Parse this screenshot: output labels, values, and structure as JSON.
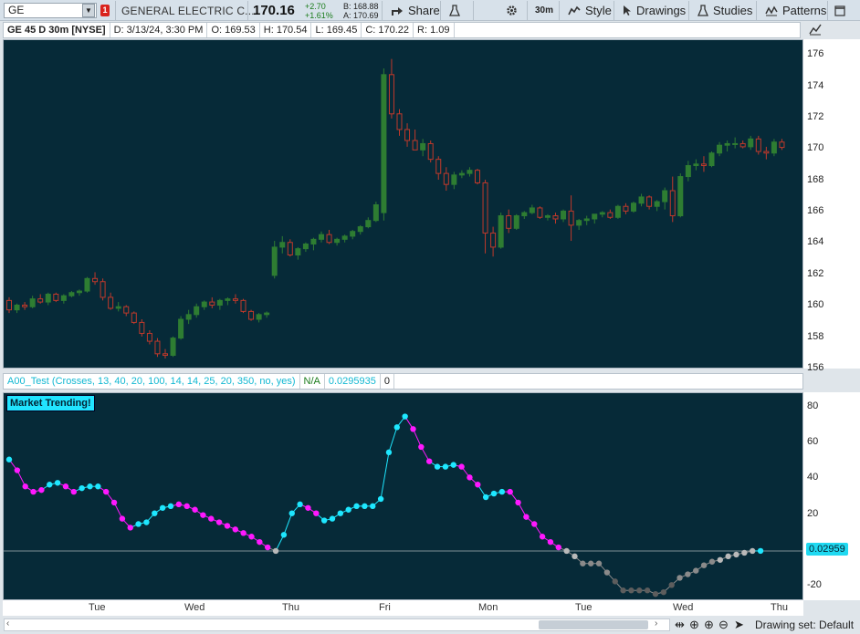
{
  "toolbar": {
    "symbol": "GE",
    "alert_count": "1",
    "company": "GENERAL ELECTRIC C...",
    "last": "170.16",
    "change_abs": "+2.70",
    "change_pct": "+1.61%",
    "bid": "B: 168.88",
    "ask": "A: 170.69",
    "share_label": "Share",
    "timeframe_label": "30m",
    "style_label": "Style",
    "drawings_label": "Drawings",
    "studies_label": "Studies",
    "patterns_label": "Patterns"
  },
  "infobar": {
    "title": "GE 45 D 30m [NYSE]",
    "date": "D: 3/13/24, 3:30 PM",
    "open": "O: 169.53",
    "high": "H: 170.54",
    "low": "L: 169.45",
    "close": "C: 170.22",
    "range": "R: 1.09"
  },
  "price_axis": [
    "176",
    "174",
    "172",
    "170",
    "168",
    "166",
    "164",
    "162",
    "160",
    "158",
    "156"
  ],
  "study_bar": {
    "name": "A00_Test (Crosses, 13, 40, 20, 100, 14, 14, 25, 20, 350, no, yes)",
    "na": "N/A",
    "value": "0.0295935",
    "zero": "0"
  },
  "study": {
    "banner": "Market Trending!",
    "value_tag": "0.02959",
    "axis": [
      "80",
      "60",
      "40",
      "20",
      "-20"
    ]
  },
  "x_axis": [
    "Tue",
    "Wed",
    "Thu",
    "Fri",
    "Mon",
    "Tue",
    "Wed",
    "Thu"
  ],
  "bottom": {
    "drawing_set": "Drawing set: Default"
  },
  "colors": {
    "background": "#062a38",
    "up_candle": "#2e7d32",
    "down_candle": "#c0392b",
    "cyan": "#1ee7ff",
    "magenta": "#ff18ff",
    "gray": "#8a8a8a"
  },
  "chart_data": [
    {
      "type": "candlestick",
      "title": "GE 45 D 30m [NYSE]",
      "ylim": [
        156,
        177
      ],
      "series": [
        {
          "name": "price",
          "ohlc": [
            [
              160.4,
              160.6,
              159.6,
              159.8
            ],
            [
              159.8,
              160.2,
              159.6,
              160.1
            ],
            [
              160.1,
              160.3,
              159.8,
              160.0
            ],
            [
              160.0,
              160.7,
              159.9,
              160.5
            ],
            [
              160.5,
              160.8,
              160.2,
              160.3
            ],
            [
              160.3,
              160.9,
              160.1,
              160.8
            ],
            [
              160.8,
              160.9,
              160.3,
              160.4
            ],
            [
              160.4,
              160.8,
              160.2,
              160.7
            ],
            [
              160.7,
              161.0,
              160.6,
              160.9
            ],
            [
              160.9,
              161.1,
              160.7,
              161.0
            ],
            [
              161.0,
              161.9,
              160.9,
              161.8
            ],
            [
              161.8,
              162.2,
              161.4,
              161.6
            ],
            [
              161.6,
              161.8,
              160.4,
              160.6
            ],
            [
              160.6,
              160.9,
              159.8,
              159.9
            ],
            [
              159.9,
              160.3,
              159.7,
              160.0
            ],
            [
              160.0,
              160.1,
              159.4,
              159.6
            ],
            [
              159.6,
              159.7,
              158.9,
              159.0
            ],
            [
              159.0,
              159.2,
              158.1,
              158.3
            ],
            [
              158.3,
              158.5,
              157.6,
              157.8
            ],
            [
              157.8,
              158.0,
              156.8,
              157.0
            ],
            [
              157.0,
              157.3,
              156.7,
              156.9
            ],
            [
              156.9,
              158.1,
              156.8,
              158.0
            ],
            [
              158.0,
              159.4,
              157.9,
              159.2
            ],
            [
              159.2,
              159.8,
              158.9,
              159.5
            ],
            [
              159.5,
              160.2,
              159.3,
              160.0
            ],
            [
              160.0,
              160.4,
              159.8,
              160.3
            ],
            [
              160.3,
              160.6,
              159.9,
              160.1
            ],
            [
              160.1,
              160.5,
              159.8,
              160.4
            ],
            [
              160.4,
              160.6,
              160.1,
              160.5
            ],
            [
              160.5,
              160.8,
              160.2,
              160.4
            ],
            [
              160.4,
              160.5,
              159.6,
              159.7
            ],
            [
              159.7,
              159.8,
              159.1,
              159.2
            ],
            [
              159.2,
              159.6,
              159.0,
              159.5
            ],
            [
              159.5,
              159.7,
              159.3,
              159.6
            ],
            [
              162.0,
              164.2,
              161.8,
              163.8
            ],
            [
              163.8,
              164.5,
              163.4,
              164.1
            ],
            [
              164.1,
              164.3,
              163.2,
              163.3
            ],
            [
              163.3,
              163.8,
              163.0,
              163.7
            ],
            [
              163.7,
              164.1,
              163.5,
              164.0
            ],
            [
              164.0,
              164.4,
              163.6,
              164.3
            ],
            [
              164.3,
              164.8,
              164.1,
              164.6
            ],
            [
              164.6,
              164.9,
              164.0,
              164.1
            ],
            [
              164.1,
              164.4,
              163.9,
              164.3
            ],
            [
              164.3,
              164.6,
              164.1,
              164.5
            ],
            [
              164.5,
              164.9,
              164.3,
              164.8
            ],
            [
              164.8,
              165.2,
              164.6,
              165.1
            ],
            [
              165.1,
              165.7,
              165.0,
              165.5
            ],
            [
              165.5,
              166.7,
              165.4,
              166.5
            ],
            [
              166.0,
              175.2,
              165.5,
              174.8
            ],
            [
              174.8,
              175.8,
              172.0,
              172.3
            ],
            [
              172.3,
              172.6,
              170.9,
              171.3
            ],
            [
              171.3,
              171.7,
              170.2,
              170.6
            ],
            [
              170.6,
              171.3,
              170.2,
              170.0
            ],
            [
              170.0,
              170.7,
              169.6,
              170.4
            ],
            [
              170.4,
              170.6,
              169.2,
              169.4
            ],
            [
              169.4,
              169.6,
              168.1,
              168.5
            ],
            [
              168.5,
              168.9,
              167.4,
              167.8
            ],
            [
              167.8,
              168.6,
              167.5,
              168.4
            ],
            [
              168.4,
              168.7,
              168.2,
              168.5
            ],
            [
              168.5,
              168.9,
              168.3,
              168.7
            ],
            [
              168.7,
              168.8,
              167.8,
              167.9
            ],
            [
              167.9,
              168.1,
              163.4,
              164.7
            ],
            [
              164.7,
              165.1,
              163.2,
              163.8
            ],
            [
              163.8,
              166.0,
              163.7,
              165.8
            ],
            [
              165.8,
              166.2,
              164.7,
              165.0
            ],
            [
              165.0,
              165.9,
              164.9,
              165.8
            ],
            [
              165.8,
              166.1,
              165.6,
              166.0
            ],
            [
              166.0,
              166.5,
              165.9,
              166.3
            ],
            [
              166.3,
              166.4,
              165.6,
              165.7
            ],
            [
              165.7,
              165.9,
              165.5,
              165.8
            ],
            [
              165.8,
              166.0,
              165.3,
              165.6
            ],
            [
              165.6,
              166.2,
              165.4,
              166.1
            ],
            [
              166.1,
              167.1,
              164.2,
              165.2
            ],
            [
              165.2,
              165.6,
              164.9,
              165.5
            ],
            [
              165.5,
              165.8,
              165.2,
              165.6
            ],
            [
              165.6,
              165.9,
              165.3,
              165.9
            ],
            [
              165.9,
              166.1,
              165.7,
              166.0
            ],
            [
              166.0,
              166.2,
              165.6,
              165.7
            ],
            [
              165.7,
              166.5,
              165.6,
              166.4
            ],
            [
              166.4,
              166.6,
              165.9,
              166.1
            ],
            [
              166.1,
              166.7,
              166.0,
              166.6
            ],
            [
              166.6,
              167.2,
              166.4,
              167.0
            ],
            [
              167.0,
              167.1,
              166.2,
              166.4
            ],
            [
              166.4,
              166.8,
              166.1,
              166.7
            ],
            [
              166.7,
              167.6,
              166.2,
              167.4
            ],
            [
              167.4,
              168.3,
              165.4,
              165.8
            ],
            [
              165.8,
              168.5,
              165.7,
              168.3
            ],
            [
              168.3,
              169.3,
              168.0,
              169.0
            ],
            [
              169.0,
              169.4,
              168.7,
              169.1
            ],
            [
              169.1,
              169.6,
              168.6,
              169.0
            ],
            [
              169.0,
              169.9,
              168.9,
              169.8
            ],
            [
              169.8,
              170.5,
              169.6,
              170.3
            ],
            [
              170.3,
              170.6,
              169.9,
              170.4
            ],
            [
              170.4,
              170.8,
              170.1,
              170.4
            ],
            [
              170.4,
              170.6,
              170.1,
              170.2
            ],
            [
              170.2,
              170.9,
              170.0,
              170.7
            ],
            [
              170.7,
              170.9,
              169.7,
              169.9
            ],
            [
              169.9,
              170.2,
              169.4,
              169.8
            ],
            [
              169.8,
              170.7,
              169.6,
              170.5
            ],
            [
              170.5,
              170.7,
              170.0,
              170.16
            ]
          ]
        }
      ]
    },
    {
      "type": "line",
      "title": "A00_Test (Crosses, 13, 40, 20, 100, 14, 14, 25, 20, 350, no, yes)",
      "ylim": [
        -28,
        88
      ],
      "series": [
        {
          "name": "study",
          "values": [
            51,
            45,
            36,
            33,
            34,
            37,
            38,
            36,
            33,
            35,
            36,
            36,
            33,
            27,
            18,
            13,
            15,
            16,
            21,
            24,
            25,
            26,
            25,
            23,
            20,
            18,
            16,
            14,
            12,
            10,
            8,
            5,
            2,
            0,
            9,
            21,
            26,
            24,
            21,
            17,
            18,
            21,
            23,
            25,
            25,
            25,
            29,
            55,
            69,
            75,
            68,
            58,
            50,
            47,
            47,
            48,
            47,
            41,
            37,
            30,
            32,
            33,
            33,
            27,
            19,
            15,
            8,
            5,
            2,
            0,
            -3,
            -7,
            -7,
            -7,
            -12,
            -17,
            -22,
            -22,
            -22,
            -22,
            -24,
            -23,
            -19,
            -15,
            -13,
            -11,
            -8,
            -6,
            -5,
            -3,
            -2,
            -1,
            0,
            0.02959
          ],
          "colors": [
            "c",
            "m",
            "m",
            "m",
            "m",
            "c",
            "c",
            "m",
            "m",
            "c",
            "c",
            "c",
            "m",
            "m",
            "m",
            "m",
            "c",
            "c",
            "c",
            "c",
            "c",
            "m",
            "m",
            "m",
            "m",
            "m",
            "m",
            "m",
            "m",
            "m",
            "m",
            "m",
            "m",
            "g",
            "c",
            "c",
            "c",
            "m",
            "m",
            "c",
            "c",
            "c",
            "c",
            "c",
            "c",
            "c",
            "c",
            "c",
            "c",
            "c",
            "m",
            "m",
            "m",
            "c",
            "c",
            "c",
            "m",
            "m",
            "m",
            "c",
            "c",
            "c",
            "m",
            "m",
            "m",
            "m",
            "m",
            "m",
            "m",
            "g",
            "g",
            "g",
            "g",
            "g",
            "g",
            "g",
            "g",
            "g",
            "g",
            "g",
            "g",
            "g",
            "g",
            "g",
            "g",
            "g",
            "g",
            "g",
            "g",
            "g",
            "g",
            "g",
            "g",
            "c"
          ]
        }
      ]
    }
  ]
}
